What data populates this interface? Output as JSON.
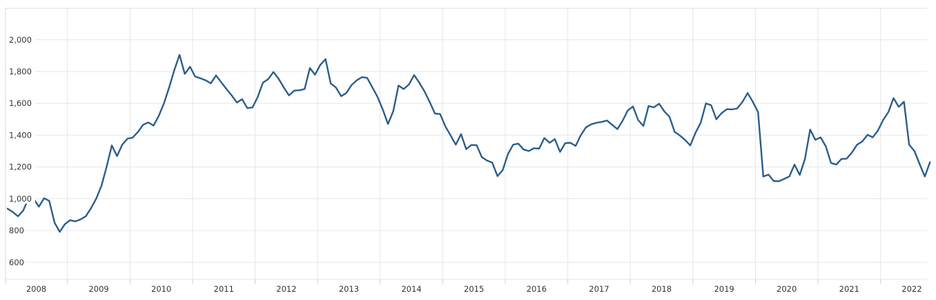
{
  "chart_data": {
    "type": "line",
    "description": "Stock index monthly time series, 2008 to late 2022",
    "x_tick_labels": [
      "2008",
      "2009",
      "2010",
      "2011",
      "2012",
      "2013",
      "2014",
      "2015",
      "2016",
      "2017",
      "2018",
      "2019",
      "2020",
      "2021",
      "2022"
    ],
    "y_tick_labels": [
      "600",
      "800",
      "1,000",
      "1,200",
      "1,400",
      "1,600",
      "1,800",
      "2,000"
    ],
    "y_tick_values": [
      600,
      800,
      1000,
      1200,
      1400,
      1600,
      1800,
      2000
    ],
    "ylim": [
      493,
      2198
    ],
    "grid": true,
    "legend": false,
    "colors": {
      "line": "#2a5d8c",
      "grid": "#e6e6e6",
      "border": "#d9d9d9",
      "tick": "#cfcfcf",
      "axis_text": "#333333",
      "background": "#ffffff"
    },
    "series": [
      {
        "name": "index",
        "frequency": "monthly",
        "start": "2008-01",
        "values": [
          938,
          916,
          890,
          925,
          1002,
          1000,
          950,
          1003,
          986,
          850,
          792,
          840,
          865,
          858,
          870,
          890,
          940,
          1000,
          1080,
          1200,
          1335,
          1268,
          1340,
          1378,
          1385,
          1420,
          1465,
          1480,
          1460,
          1520,
          1600,
          1700,
          1810,
          1905,
          1785,
          1830,
          1768,
          1758,
          1745,
          1726,
          1775,
          1732,
          1690,
          1650,
          1605,
          1626,
          1570,
          1574,
          1640,
          1730,
          1752,
          1797,
          1755,
          1700,
          1650,
          1680,
          1682,
          1690,
          1822,
          1780,
          1842,
          1878,
          1725,
          1700,
          1645,
          1665,
          1715,
          1745,
          1765,
          1760,
          1700,
          1640,
          1560,
          1470,
          1550,
          1712,
          1690,
          1718,
          1778,
          1730,
          1675,
          1608,
          1536,
          1533,
          1455,
          1398,
          1340,
          1406,
          1312,
          1338,
          1337,
          1262,
          1240,
          1228,
          1142,
          1180,
          1280,
          1340,
          1347,
          1310,
          1300,
          1318,
          1315,
          1382,
          1352,
          1375,
          1295,
          1350,
          1352,
          1332,
          1400,
          1450,
          1468,
          1478,
          1483,
          1492,
          1465,
          1438,
          1490,
          1555,
          1580,
          1495,
          1458,
          1583,
          1575,
          1598,
          1550,
          1515,
          1420,
          1398,
          1370,
          1335,
          1415,
          1478,
          1600,
          1588,
          1500,
          1538,
          1563,
          1562,
          1568,
          1608,
          1665,
          1610,
          1545,
          1140,
          1152,
          1112,
          1110,
          1125,
          1140,
          1215,
          1150,
          1250,
          1435,
          1370,
          1386,
          1330,
          1225,
          1215,
          1250,
          1252,
          1290,
          1340,
          1360,
          1402,
          1386,
          1428,
          1495,
          1545,
          1633,
          1578,
          1610,
          1340,
          1300,
          1218,
          1140,
          1230
        ]
      }
    ]
  }
}
